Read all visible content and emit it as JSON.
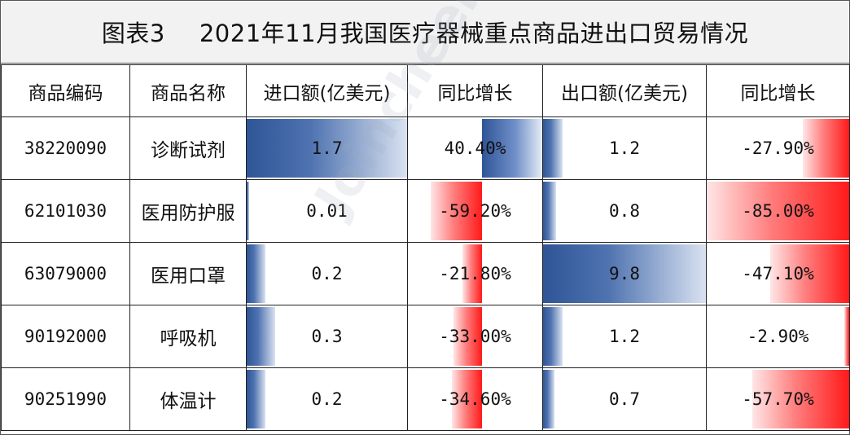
{
  "title": {
    "figure_no": "图表3",
    "text": "2021年11月我国医疗器械重点商品进出口贸易情况"
  },
  "headers": [
    "商品编码",
    "商品名称",
    "进口额(亿美元)",
    "同比增长",
    "出口额(亿美元)",
    "同比增长"
  ],
  "rows": [
    {
      "code": "38220090",
      "name": "诊断试剂",
      "import": "1.7",
      "import_yoy": "40.40%",
      "export": "1.2",
      "export_yoy": "-27.90%"
    },
    {
      "code": "62101030",
      "name": "医用防护服",
      "import": "0.01",
      "import_yoy": "-59.20%",
      "export": "0.8",
      "export_yoy": "-85.00%"
    },
    {
      "code": "63079000",
      "name": "医用口罩",
      "import": "0.2",
      "import_yoy": "-21.80%",
      "export": "9.8",
      "export_yoy": "-47.10%"
    },
    {
      "code": "90192000",
      "name": "呼吸机",
      "import": "0.3",
      "import_yoy": "-33.00%",
      "export": "1.2",
      "export_yoy": "-2.90%"
    },
    {
      "code": "90251990",
      "name": "体温计",
      "import": "0.2",
      "import_yoy": "-34.60%",
      "export": "0.7",
      "export_yoy": "-57.70%"
    }
  ],
  "bar_levels": {
    "import_max": 1.7,
    "export_max": 9.8,
    "yoy_max_abs": 85.0,
    "import_yoy_values": [
      40.4,
      -59.2,
      -21.8,
      -33.0,
      -34.6
    ],
    "export_yoy_values": [
      -27.9,
      -85.0,
      -47.1,
      -2.9,
      -57.7
    ]
  },
  "colors": {
    "positive_bar": "#2f5597",
    "negative_bar": "#ff1a1a",
    "title_bg": "#f2f2f2"
  },
  "watermark": "Joincheer 众成"
}
